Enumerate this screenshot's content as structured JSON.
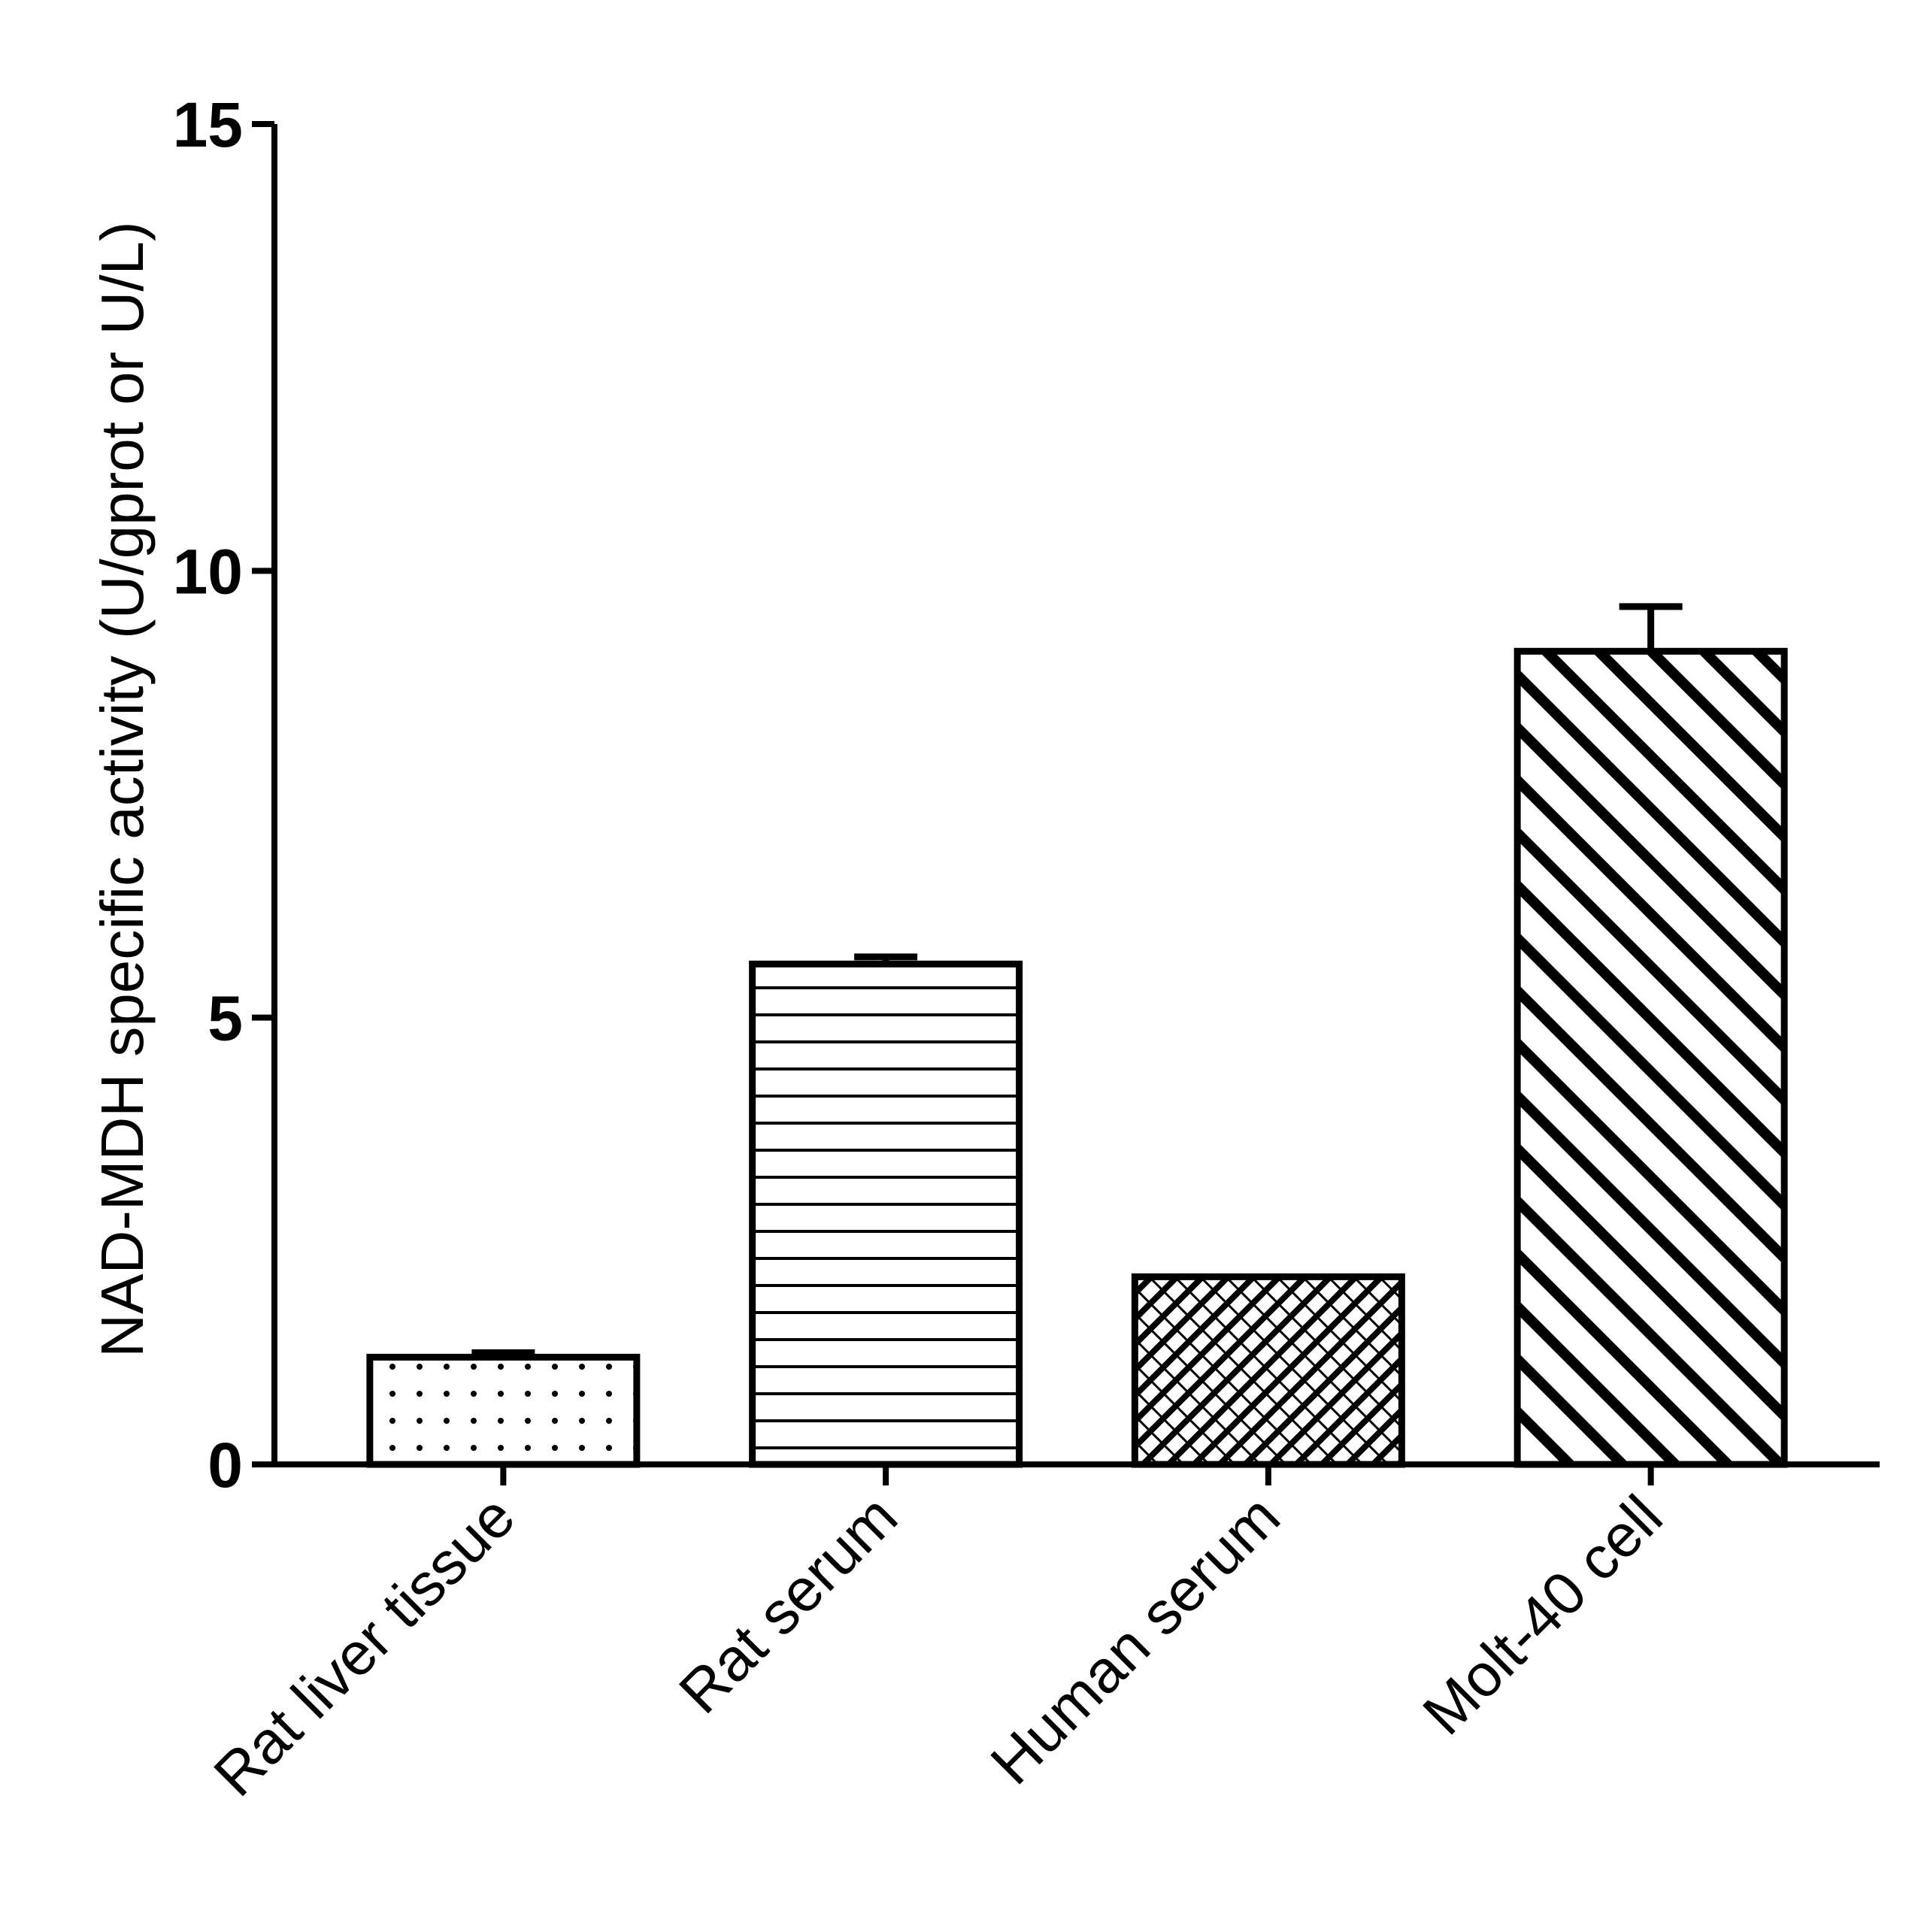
{
  "chart_data": {
    "type": "bar",
    "title": "",
    "xlabel": "",
    "ylabel": "NAD-MDH specific activity (U/gprot or U/L)",
    "ylim": [
      0,
      15
    ],
    "yticks": [
      "0",
      "5",
      "10",
      "15"
    ],
    "grid": false,
    "categories": [
      "Rat liver tissue",
      "Rat serum",
      "Human serum",
      "Molt-40 cell"
    ],
    "values": [
      1.2,
      5.6,
      2.1,
      9.1
    ],
    "errors": [
      0.05,
      0.08,
      0.0,
      0.5
    ],
    "patterns": [
      "dots",
      "horizontal-lines",
      "crosshatch",
      "diagonal-stripes"
    ],
    "colors": {
      "bar_outline": "#000000",
      "bar_fill": "#ffffff",
      "axis": "#000000"
    }
  }
}
